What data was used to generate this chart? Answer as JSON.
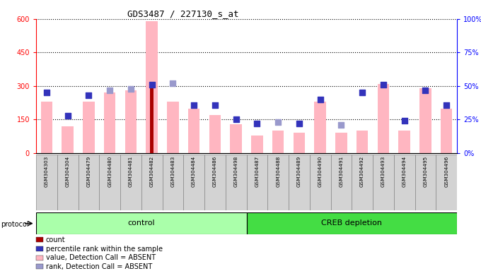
{
  "title": "GDS3487 / 227130_s_at",
  "samples": [
    "GSM304303",
    "GSM304304",
    "GSM304479",
    "GSM304480",
    "GSM304481",
    "GSM304482",
    "GSM304483",
    "GSM304484",
    "GSM304486",
    "GSM304498",
    "GSM304487",
    "GSM304488",
    "GSM304489",
    "GSM304490",
    "GSM304491",
    "GSM304492",
    "GSM304493",
    "GSM304494",
    "GSM304495",
    "GSM304496"
  ],
  "control_count": 10,
  "pink_values": [
    230,
    120,
    230,
    270,
    280,
    590,
    230,
    200,
    170,
    130,
    80,
    100,
    90,
    230,
    90,
    100,
    310,
    100,
    290,
    200
  ],
  "red_count_values": [
    0,
    0,
    0,
    0,
    0,
    320,
    0,
    0,
    0,
    0,
    0,
    0,
    0,
    0,
    0,
    0,
    0,
    0,
    0,
    0
  ],
  "blue_pct_right": [
    45,
    28,
    43,
    0,
    0,
    51,
    0,
    36,
    36,
    25,
    22,
    0,
    22,
    40,
    0,
    45,
    51,
    24,
    47,
    36
  ],
  "light_blue_right": [
    0,
    0,
    0,
    47,
    48,
    0,
    52,
    0,
    0,
    0,
    0,
    23,
    0,
    0,
    21,
    0,
    0,
    0,
    0,
    0
  ],
  "ylim_left": [
    0,
    600
  ],
  "ylim_right": [
    0,
    100
  ],
  "yticks_left": [
    0,
    150,
    300,
    450,
    600
  ],
  "yticks_right": [
    0,
    25,
    50,
    75,
    100
  ],
  "pink_color": "#FFB6C1",
  "red_color": "#AA0000",
  "blue_color": "#3333BB",
  "light_blue_color": "#9999CC",
  "group_control_color": "#AAFFAA",
  "group_creb_color": "#44DD44",
  "legend_items": [
    {
      "label": "count",
      "color": "#AA0000"
    },
    {
      "label": "percentile rank within the sample",
      "color": "#3333BB"
    },
    {
      "label": "value, Detection Call = ABSENT",
      "color": "#FFB6C1"
    },
    {
      "label": "rank, Detection Call = ABSENT",
      "color": "#9999CC"
    }
  ]
}
